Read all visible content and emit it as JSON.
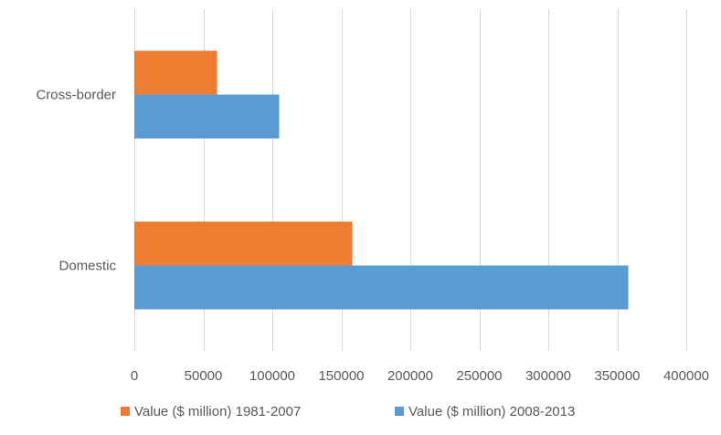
{
  "chart_data": {
    "type": "bar",
    "orientation": "horizontal",
    "categories": [
      "Cross-border",
      "Domestic"
    ],
    "series": [
      {
        "name": "Value ($ million) 1981-2007",
        "color": "#ED7D31",
        "values": [
          60000,
          158000
        ]
      },
      {
        "name": "Value ($ million) 2008-2013",
        "color": "#5B9BD5",
        "values": [
          105000,
          358000
        ]
      }
    ],
    "xlim": [
      0,
      400000
    ],
    "x_ticks": [
      0,
      50000,
      100000,
      150000,
      200000,
      250000,
      300000,
      350000,
      400000
    ],
    "x_tick_labels": [
      "0",
      "50000",
      "100000",
      "150000",
      "200000",
      "250000",
      "300000",
      "350000",
      "400000"
    ],
    "grid": "vertical",
    "legend_position": "bottom",
    "title": "",
    "xlabel": "",
    "ylabel": ""
  }
}
